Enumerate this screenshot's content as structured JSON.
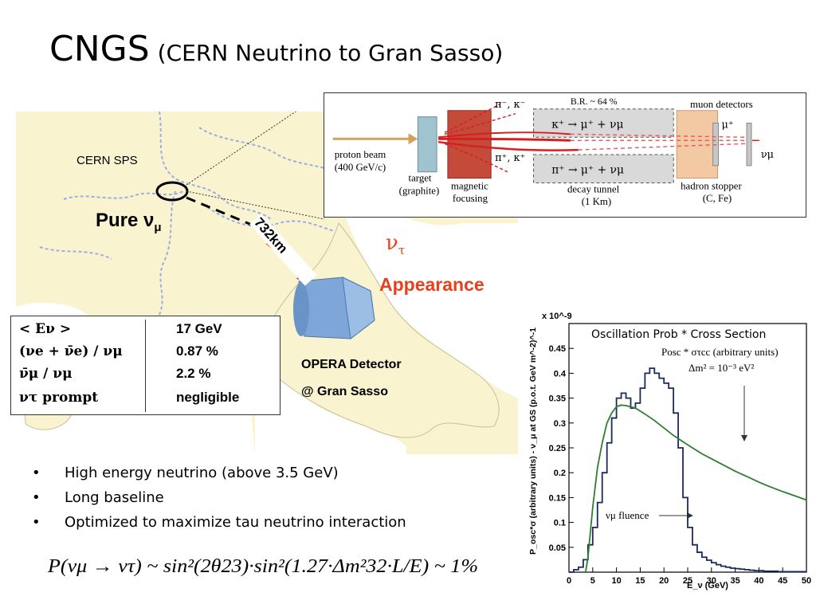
{
  "title": {
    "main": "CNGS",
    "sub": "(CERN Neutrino to Gran Sasso)"
  },
  "map": {
    "cern_label": "CERN SPS",
    "pure_label": "Pure ν",
    "pure_sub": "μ",
    "distance_label": "732km",
    "nutau_label": "ν",
    "nutau_sub": "τ",
    "appearance_label": "Appearance",
    "detector_label": "OPERA Detector",
    "site_label": "@ Gran Sasso",
    "colors": {
      "land": "#f9f3cf",
      "border": "#9aaee0",
      "arrow_red": "#e02020",
      "detector": "#7ea6d8",
      "appearance": "#e8401c"
    }
  },
  "beamline": {
    "proton_label": "proton beam",
    "proton_energy": "(400 GeV/c)",
    "target_label": "target",
    "target_material": "(graphite)",
    "focusing_label_1": "magnetic",
    "focusing_label_2": "focusing",
    "pi_k_minus": "π⁻, κ⁻",
    "pi_k_plus": "π⁺, κ⁺",
    "br_label": "B.R. ~ 64 %",
    "kaon_decay": "κ⁺ → μ⁺ + νμ",
    "pion_decay": "π⁺ → μ⁺ + νμ",
    "tunnel_label": "decay tunnel",
    "tunnel_length": "(1 Km)",
    "muon_detectors_label": "muon detectors",
    "mu_plus": "μ⁺",
    "nu_mu": "νμ",
    "stopper_label": "hadron stopper",
    "stopper_material": "(C, Fe)"
  },
  "params": [
    {
      "name": "< E_ν >",
      "value": "17 GeV"
    },
    {
      "name": "(ν_e + ν̄_e) / ν_μ",
      "value": "0.87 %"
    },
    {
      "name": "ν̄_μ / ν_μ",
      "value": "2.2 %"
    },
    {
      "name": "ν_τ prompt",
      "value": "negligible"
    }
  ],
  "params_display": {
    "row0_name": "< Eν >",
    "row1_name": "(νe + ν̄e) / νμ",
    "row2_name": "ν̄μ / νμ",
    "row3_name": "ντ  prompt"
  },
  "bullets": [
    "High energy neutrino (above 3.5 GeV)",
    "Long baseline",
    "Optimized to maximize tau neutrino interaction"
  ],
  "bullet_marker": "•",
  "formula": {
    "text": "P(νμ → ντ) ~ sin²(2θ23)·sin²(1.27·Δm²32·L/E) ~ 1%"
  },
  "chart_data": {
    "type": "line",
    "title": "Oscillation Prob * Cross Section",
    "xlabel": "E_ν (GeV)",
    "ylabel": "P_osc*σ (arbitrary units) - ν_μ at GS (p.o.t. GeV m^-2)^-1",
    "y_multiplier": "x 10^-9",
    "xlim": [
      0,
      50
    ],
    "ylim": [
      0,
      0.5
    ],
    "x_ticks": [
      0,
      5,
      10,
      15,
      20,
      25,
      30,
      35,
      40,
      45,
      50
    ],
    "y_ticks": [
      0.05,
      0.1,
      0.15,
      0.2,
      0.25,
      0.3,
      0.35,
      0.4,
      0.45
    ],
    "annotations": {
      "posc_line1": "Posc * στcc (arbitrary units)",
      "posc_line2": "Δm² = 10⁻³ eV²",
      "fluence": "νμ fluence"
    },
    "series": [
      {
        "name": "νμ fluence",
        "style": "step",
        "color": "#1a2a5a",
        "x": [
          0,
          1,
          2,
          3,
          4,
          5,
          6,
          7,
          8,
          9,
          10,
          11,
          12,
          13,
          14,
          15,
          16,
          17,
          18,
          19,
          20,
          21,
          22,
          23,
          24,
          25,
          26,
          27,
          28,
          29,
          30,
          31,
          32,
          33,
          34,
          35,
          36,
          37,
          38,
          39,
          40,
          41,
          42,
          43,
          44,
          45,
          46,
          47,
          48,
          49,
          50
        ],
        "values": [
          0,
          0.005,
          0.01,
          0.025,
          0.055,
          0.09,
          0.14,
          0.2,
          0.26,
          0.31,
          0.35,
          0.36,
          0.35,
          0.33,
          0.34,
          0.37,
          0.4,
          0.41,
          0.4,
          0.39,
          0.38,
          0.37,
          0.32,
          0.25,
          0.15,
          0.09,
          0.055,
          0.04,
          0.03,
          0.024,
          0.019,
          0.015,
          0.012,
          0.01,
          0.008,
          0.007,
          0.006,
          0.005,
          0.004,
          0.003,
          0.003,
          0.002,
          0.002,
          0.002,
          0.001,
          0.001,
          0.001,
          0.001,
          0.001,
          0.001,
          0
        ]
      },
      {
        "name": "Posc * στcc",
        "style": "line",
        "color": "#2e7d32",
        "x": [
          3.5,
          4,
          5,
          6,
          7,
          8,
          9,
          10,
          11,
          12,
          14,
          16,
          18,
          20,
          22,
          25,
          28,
          30,
          32,
          35,
          38,
          40,
          42,
          45,
          48,
          50
        ],
        "values": [
          0,
          0.03,
          0.13,
          0.21,
          0.26,
          0.3,
          0.32,
          0.333,
          0.336,
          0.335,
          0.33,
          0.318,
          0.305,
          0.29,
          0.275,
          0.256,
          0.238,
          0.228,
          0.218,
          0.203,
          0.19,
          0.181,
          0.173,
          0.162,
          0.152,
          0.145
        ]
      }
    ]
  }
}
